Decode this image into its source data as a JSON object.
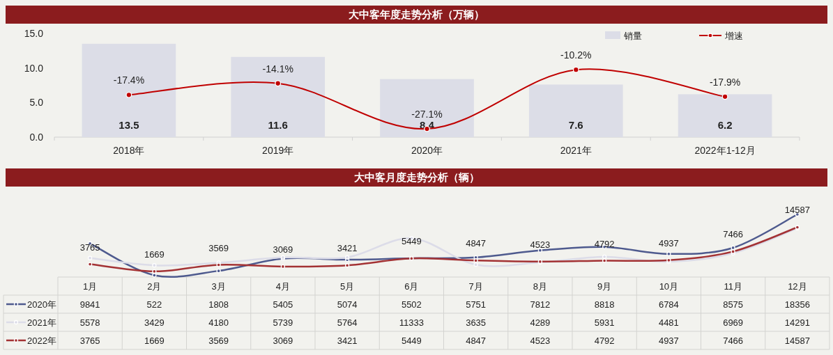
{
  "chart_data": [
    {
      "type": "bar",
      "title": "大中客年度走势分析（万辆）",
      "categories": [
        "2018年",
        "2019年",
        "2020年",
        "2021年",
        "2022年1-12月"
      ],
      "ylim": [
        0,
        15
      ],
      "yticks": [
        {
          "value": 0,
          "label": "0.0"
        },
        {
          "value": 5,
          "label": "5.0"
        },
        {
          "value": 10,
          "label": "10.0"
        },
        {
          "value": 15,
          "label": "15.0"
        }
      ],
      "legend": "top right",
      "series": [
        {
          "name": "销量",
          "color": "#dcdde7",
          "values": [
            13.5,
            11.6,
            8.4,
            7.6,
            6.2
          ],
          "value_labels": [
            "13.5",
            "11.6",
            "8.4",
            "7.6",
            "6.2"
          ]
        },
        {
          "name": "增速",
          "type": "line",
          "axis": "y2",
          "marker": "circle",
          "color": "#c00000",
          "values": [
            -17.4,
            -14.1,
            -27.1,
            -10.2,
            -17.9
          ],
          "value_labels": [
            "-17.4%",
            "-14.1%",
            "-27.1%",
            "-10.2%",
            "-17.9%"
          ]
        }
      ]
    },
    {
      "type": "line",
      "title": "大中客月度走势分析（辆）",
      "categories": [
        "1月",
        "2月",
        "3月",
        "4月",
        "5月",
        "6月",
        "7月",
        "8月",
        "9月",
        "10月",
        "11月",
        "12月"
      ],
      "data_labels": true,
      "legend": "bottom left",
      "marker": "circle",
      "series": [
        {
          "name": "2020年",
          "color": "#4e5a8e",
          "values": [
            9841,
            522,
            1808,
            5405,
            5074,
            5502,
            5751,
            7812,
            8818,
            6784,
            8575,
            18356
          ]
        },
        {
          "name": "2021年",
          "color": "#dcdce8",
          "values": [
            5578,
            3429,
            4180,
            5739,
            5764,
            11333,
            3635,
            4289,
            5931,
            4481,
            6969,
            14291
          ]
        },
        {
          "name": "2022年",
          "color": "#a33234",
          "values": [
            3765,
            1669,
            3569,
            3069,
            3421,
            5449,
            4847,
            4523,
            4792,
            4937,
            7466,
            14587
          ],
          "value_labels": [
            "3765",
            "1669",
            "3569",
            "3069",
            "3421",
            "5449",
            "4847",
            "4523",
            "4792",
            "4937",
            "7466",
            "14587"
          ]
        }
      ]
    }
  ]
}
